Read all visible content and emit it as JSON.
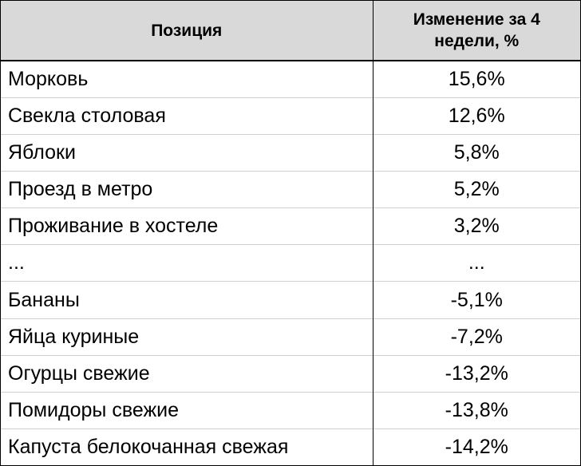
{
  "table": {
    "headers": {
      "position": "Позиция",
      "change": "Изменение за 4 недели, %"
    },
    "rows": [
      {
        "position": "Морковь",
        "change": "15,6%"
      },
      {
        "position": "Свекла столовая",
        "change": "12,6%"
      },
      {
        "position": "Яблоки",
        "change": "5,8%"
      },
      {
        "position": "Проезд в метро",
        "change": "5,2%"
      },
      {
        "position": "Проживание в хостеле",
        "change": "3,2%"
      },
      {
        "position": "...",
        "change": "..."
      },
      {
        "position": "Бананы",
        "change": "-5,1%"
      },
      {
        "position": "Яйца куриные",
        "change": "-7,2%"
      },
      {
        "position": "Огурцы свежие",
        "change": "-13,2%"
      },
      {
        "position": "Помидоры свежие",
        "change": "-13,8%"
      },
      {
        "position": "Капуста белокочанная свежая",
        "change": "-14,2%"
      }
    ]
  },
  "colors": {
    "header_background": "#d9d9d9",
    "row_divider": "#cfcfcf",
    "border": "#000000"
  }
}
